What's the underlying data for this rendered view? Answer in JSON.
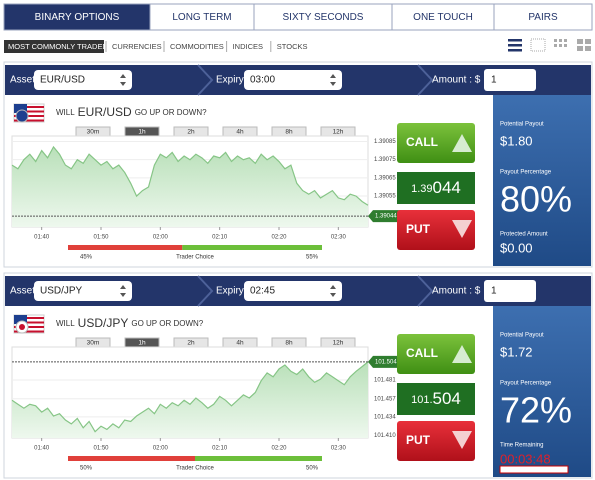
{
  "tabs": [
    "BINARY OPTIONS",
    "LONG TERM",
    "SIXTY SECONDS",
    "ONE TOUCH",
    "PAIRS"
  ],
  "active_tab": 0,
  "subnav": [
    "MOST COMMONLY TRADED",
    "CURRENCIES",
    "COMMODITIES",
    "INDICES",
    "STOCKS"
  ],
  "active_subnav": 0,
  "panels": [
    {
      "asset_label": "Asset :",
      "asset": "EUR/USD",
      "expiry_label": "Expiry :",
      "expiry": "03:00",
      "amount_label": "Amount : $",
      "amount": "1",
      "question": [
        "WILL",
        "EUR/USD",
        "GO UP OR DOWN?"
      ],
      "ranges": [
        "30m",
        "1h",
        "2h",
        "4h",
        "8h",
        "12h"
      ],
      "active_range": 1,
      "chart": {
        "type": "area",
        "color": "#86c586",
        "values": [
          1.39072,
          1.3907,
          1.39075,
          1.39078,
          1.39074,
          1.3908,
          1.39076,
          1.39082,
          1.39078,
          1.39072,
          1.3907,
          1.39075,
          1.39073,
          1.39078,
          1.39075,
          1.39072,
          1.39074,
          1.3907,
          1.39072,
          1.39068,
          1.39062,
          1.39055,
          1.39058,
          1.3906,
          1.39072,
          1.39078,
          1.39076,
          1.39079,
          1.39074,
          1.39077,
          1.39075,
          1.39078,
          1.39076,
          1.39073,
          1.39077,
          1.39076,
          1.39079,
          1.39074,
          1.39077,
          1.39075,
          1.39076,
          1.39073,
          1.39078,
          1.39075,
          1.39077,
          1.39074,
          1.3907,
          1.39072,
          1.39062,
          1.39058,
          1.39056,
          1.39058,
          1.39054,
          1.39056,
          1.39058,
          1.39054,
          1.39053,
          1.39056,
          1.39055,
          1.39052,
          1.3905
        ],
        "xlim": [
          0,
          60
        ],
        "xticks": [
          {
            "value": 5,
            "label": "01:40"
          },
          {
            "value": 15,
            "label": "01:50"
          },
          {
            "value": 25,
            "label": "02:00"
          },
          {
            "value": 35,
            "label": "02:10"
          },
          {
            "value": 45,
            "label": "02:20"
          },
          {
            "value": 55,
            "label": "02:30"
          }
        ],
        "ylim": [
          1.39038,
          1.39088
        ],
        "yticks": [
          1.39085,
          1.39075,
          1.39065,
          1.39055
        ],
        "current": 1.39044
      },
      "call": "CALL",
      "put": "PUT",
      "price": [
        "1.39",
        "044"
      ],
      "trader_choice": {
        "put": {
          "value": 45,
          "label": "45%"
        },
        "label": "Trader Choice",
        "call": {
          "value": 55,
          "label": "55%"
        }
      },
      "stats": [
        {
          "label": "Potential Payout",
          "value": "$1.80"
        },
        {
          "label": "Payout Percentage",
          "value": "80%"
        },
        {
          "label": "Protected Amount",
          "value": "$0.00"
        }
      ]
    },
    {
      "asset_label": "Asset :",
      "asset": "USD/JPY",
      "expiry_label": "Expiry :",
      "expiry": "02:45",
      "amount_label": "Amount : $",
      "amount": "1",
      "question": [
        "WILL",
        "USD/JPY",
        "GO UP OR DOWN?"
      ],
      "ranges": [
        "30m",
        "1h",
        "2h",
        "4h",
        "8h",
        "12h"
      ],
      "active_range": 1,
      "chart": {
        "type": "area",
        "color": "#86c586",
        "values": [
          101.455,
          101.45,
          101.445,
          101.45,
          101.448,
          101.44,
          101.445,
          101.435,
          101.438,
          101.43,
          101.425,
          101.432,
          101.42,
          101.428,
          101.415,
          101.422,
          101.418,
          101.425,
          101.42,
          101.43,
          101.428,
          101.435,
          101.44,
          101.445,
          101.438,
          101.45,
          101.445,
          101.452,
          101.448,
          101.455,
          101.45,
          101.458,
          101.452,
          101.445,
          101.45,
          101.46,
          101.455,
          101.448,
          101.455,
          101.462,
          101.458,
          101.465,
          101.48,
          101.49,
          101.485,
          101.495,
          101.5,
          101.492,
          101.488,
          101.495,
          101.485,
          101.478,
          101.482,
          101.49,
          101.485,
          101.48,
          101.475,
          101.485,
          101.492,
          101.498,
          101.504
        ],
        "xlim": [
          0,
          60
        ],
        "xticks": [
          {
            "value": 5,
            "label": "01:40"
          },
          {
            "value": 15,
            "label": "01:50"
          },
          {
            "value": 25,
            "label": "02:00"
          },
          {
            "value": 35,
            "label": "02:10"
          },
          {
            "value": 45,
            "label": "02:20"
          },
          {
            "value": 55,
            "label": "02:30"
          }
        ],
        "ylim": [
          101.407,
          101.523
        ],
        "yticks": [
          101.481,
          101.457,
          101.434,
          {
            "value": 101.41,
            "label": "101.410"
          }
        ],
        "current": 101.504
      },
      "call": "CALL",
      "put": "PUT",
      "price": [
        "101.",
        "504"
      ],
      "trader_choice": {
        "put": {
          "value": 50,
          "label": "50%"
        },
        "label": "Trader Choice",
        "call": {
          "value": 50,
          "label": "50%"
        }
      },
      "stats": [
        {
          "label": "Potential Payout",
          "value": "$1.72"
        },
        {
          "label": "Payout Percentage",
          "value": "72%"
        },
        {
          "label": "Time Remaining",
          "value": "00:03:48"
        }
      ]
    }
  ]
}
